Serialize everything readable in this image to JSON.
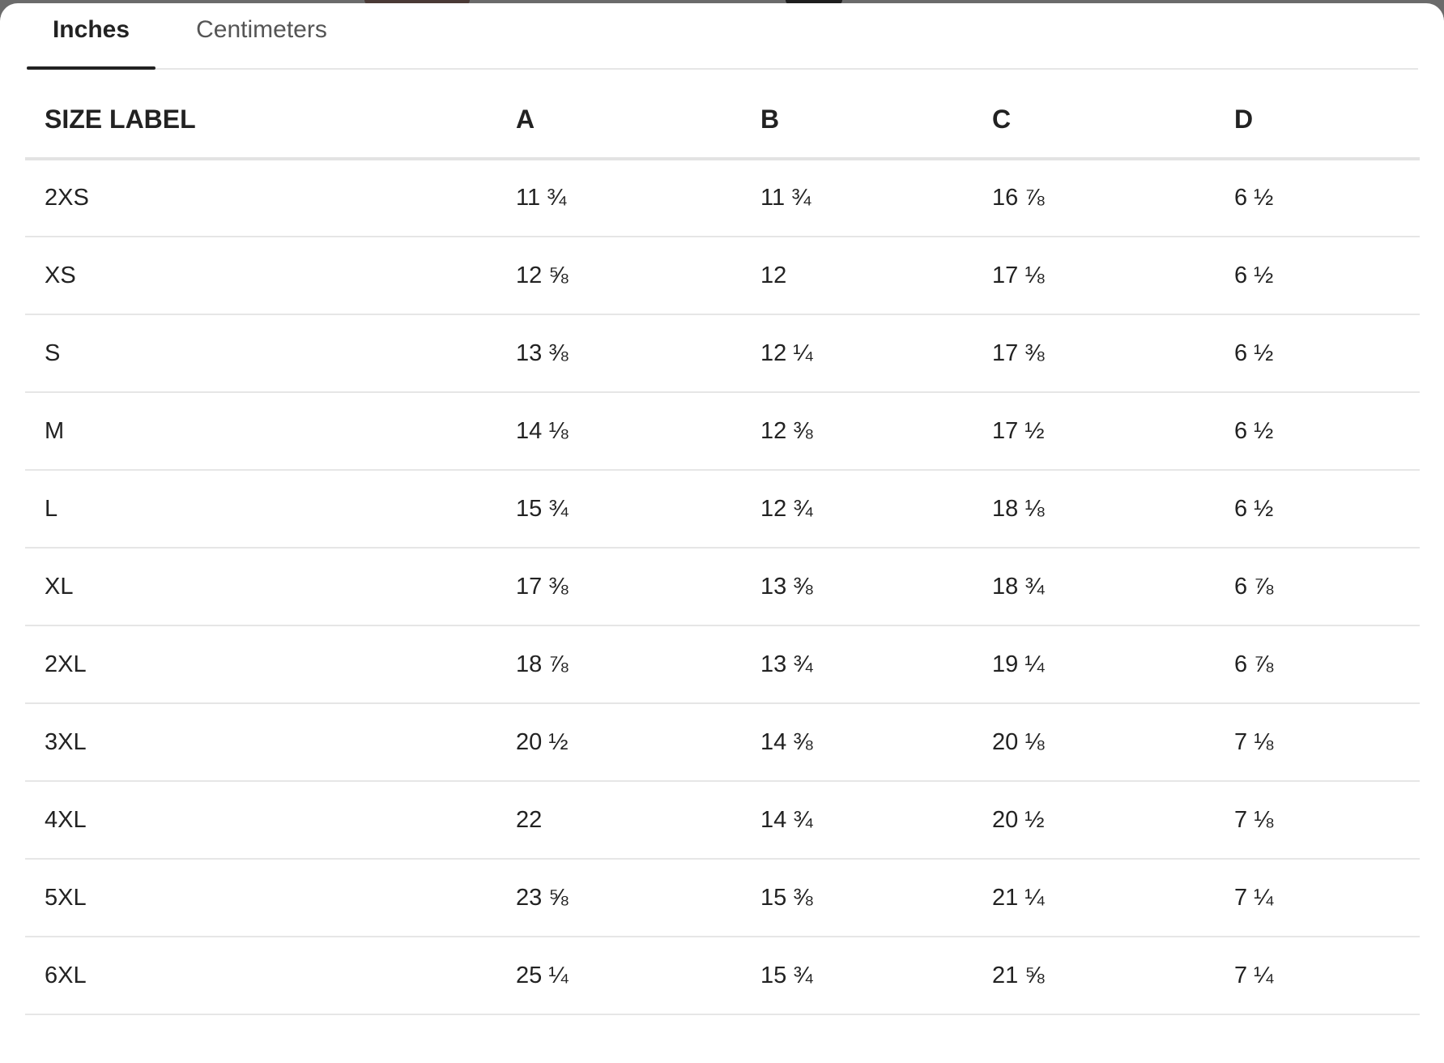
{
  "tabs": [
    {
      "label": "Inches",
      "active": true
    },
    {
      "label": "Centimeters",
      "active": false
    }
  ],
  "table": {
    "headers": [
      "SIZE LABEL",
      "A",
      "B",
      "C",
      "D"
    ],
    "rows": [
      [
        "2XS",
        "11 ¾",
        "11 ¾",
        "16 ⅞",
        "6 ½"
      ],
      [
        "XS",
        "12 ⅝",
        "12",
        "17 ⅛",
        "6 ½"
      ],
      [
        "S",
        "13 ⅜",
        "12 ¼",
        "17 ⅜",
        "6 ½"
      ],
      [
        "M",
        "14 ⅛",
        "12 ⅜",
        "17 ½",
        "6 ½"
      ],
      [
        "L",
        "15 ¾",
        "12 ¾",
        "18 ⅛",
        "6 ½"
      ],
      [
        "XL",
        "17 ⅜",
        "13 ⅜",
        "18 ¾",
        "6 ⅞"
      ],
      [
        "2XL",
        "18 ⅞",
        "13 ¾",
        "19 ¼",
        "6 ⅞"
      ],
      [
        "3XL",
        "20 ½",
        "14 ⅜",
        "20 ⅛",
        "7 ⅛"
      ],
      [
        "4XL",
        "22",
        "14 ¾",
        "20 ½",
        "7 ⅛"
      ],
      [
        "5XL",
        "23 ⅝",
        "15 ⅜",
        "21 ¼",
        "7 ¼"
      ],
      [
        "6XL",
        "25 ¼",
        "15 ¾",
        "21 ⅝",
        "7 ¼"
      ]
    ]
  }
}
